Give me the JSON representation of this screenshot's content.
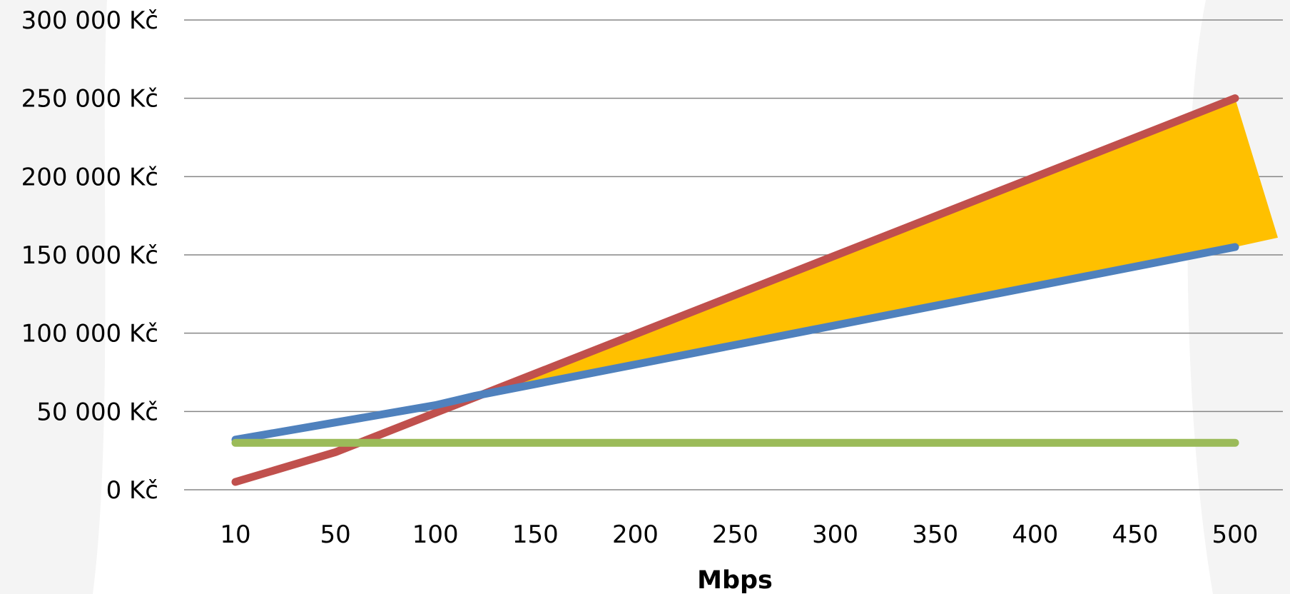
{
  "chart_data": {
    "type": "line",
    "x_categories": [
      "10",
      "50",
      "100",
      "150",
      "200",
      "250",
      "300",
      "350",
      "400",
      "450",
      "500"
    ],
    "x_values": [
      10,
      50,
      100,
      150,
      200,
      250,
      300,
      350,
      400,
      450,
      500
    ],
    "xlabel": "Mbps",
    "ylabel": "",
    "y_ticks": [
      0,
      50000,
      100000,
      150000,
      200000,
      250000,
      300000
    ],
    "y_tick_labels": [
      "0 Kč",
      "50 000 Kč",
      "100 000 Kč",
      "150 000 Kč",
      "200 000 Kč",
      "250 000 Kč",
      "300 000 Kč"
    ],
    "ylim": [
      0,
      300000
    ],
    "grid": "horizontal",
    "series": [
      {
        "key": "red",
        "color": "#C0504D",
        "points": [
          [
            10,
            5000
          ],
          [
            50,
            24000
          ],
          [
            500,
            250000
          ]
        ]
      },
      {
        "key": "blue",
        "color": "#4F81BD",
        "points": [
          [
            10,
            32000
          ],
          [
            50,
            43000
          ],
          [
            100,
            54000
          ],
          [
            120,
            60000
          ],
          [
            500,
            155000
          ]
        ]
      },
      {
        "key": "green",
        "color": "#9BBB59",
        "points": [
          [
            10,
            30000
          ],
          [
            500,
            30000
          ]
        ]
      }
    ],
    "shaded_region": {
      "color": "#FFC000",
      "between": [
        "red",
        "blue"
      ],
      "x_from": 120,
      "x_to": 500
    }
  }
}
